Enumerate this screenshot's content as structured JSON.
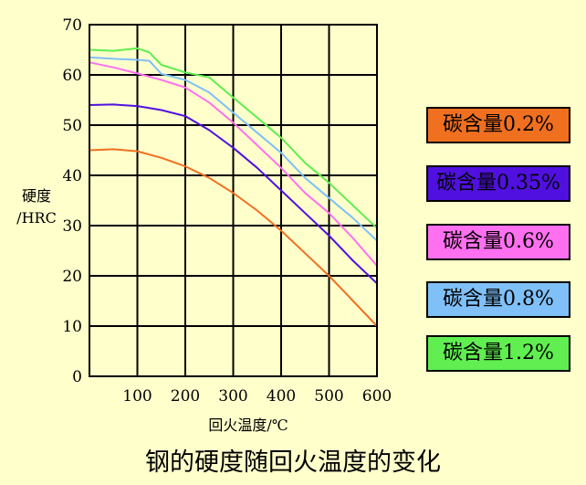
{
  "chart_data": {
    "type": "line",
    "title": "钢的硬度随回火温度的变化",
    "xlabel": "回火温度/℃",
    "ylabel": [
      "硬度",
      "/HRC"
    ],
    "xlim": [
      0,
      600
    ],
    "ylim": [
      0,
      70
    ],
    "x_ticks": [
      "100",
      "200",
      "300",
      "400",
      "500",
      "600"
    ],
    "y_ticks": [
      "0",
      "10",
      "20",
      "30",
      "40",
      "50",
      "60",
      "70"
    ],
    "grid": true,
    "legend_position": "right",
    "series": [
      {
        "name": "碳含量0.2%",
        "color": "#f07020",
        "points": [
          [
            0,
            45
          ],
          [
            50,
            45.2
          ],
          [
            100,
            44.8
          ],
          [
            150,
            43.5
          ],
          [
            200,
            41.8
          ],
          [
            250,
            39.5
          ],
          [
            300,
            36.5
          ],
          [
            350,
            33
          ],
          [
            400,
            29
          ],
          [
            450,
            24.5
          ],
          [
            500,
            20
          ],
          [
            550,
            15
          ],
          [
            600,
            10
          ]
        ]
      },
      {
        "name": "碳含量0.35%",
        "color": "#5010e0",
        "points": [
          [
            0,
            54
          ],
          [
            50,
            54.1
          ],
          [
            100,
            53.8
          ],
          [
            150,
            53
          ],
          [
            200,
            51.8
          ],
          [
            250,
            49
          ],
          [
            300,
            45.5
          ],
          [
            350,
            41.5
          ],
          [
            400,
            37
          ],
          [
            450,
            32.5
          ],
          [
            500,
            28
          ],
          [
            550,
            23
          ],
          [
            600,
            18.5
          ]
        ]
      },
      {
        "name": "碳含量0.6%",
        "color": "#ff70f0",
        "points": [
          [
            0,
            62.5
          ],
          [
            50,
            61.5
          ],
          [
            100,
            60.3
          ],
          [
            150,
            59
          ],
          [
            200,
            57.5
          ],
          [
            250,
            54.5
          ],
          [
            300,
            50.5
          ],
          [
            350,
            46
          ],
          [
            400,
            41.5
          ],
          [
            450,
            36.5
          ],
          [
            500,
            32.5
          ],
          [
            550,
            27.5
          ],
          [
            600,
            22
          ]
        ]
      },
      {
        "name": "碳含量0.8%",
        "color": "#80c0f8",
        "points": [
          [
            0,
            63.5
          ],
          [
            50,
            63.2
          ],
          [
            100,
            63
          ],
          [
            125,
            62.8
          ],
          [
            150,
            60.2
          ],
          [
            200,
            59
          ],
          [
            250,
            56.5
          ],
          [
            300,
            52.5
          ],
          [
            350,
            48.5
          ],
          [
            400,
            44.5
          ],
          [
            450,
            39.5
          ],
          [
            500,
            35.5
          ],
          [
            550,
            31.5
          ],
          [
            600,
            27
          ]
        ]
      },
      {
        "name": "碳含量1.2%",
        "color": "#60ee50",
        "points": [
          [
            0,
            65
          ],
          [
            50,
            64.8
          ],
          [
            100,
            65.3
          ],
          [
            125,
            64.5
          ],
          [
            150,
            62
          ],
          [
            200,
            60.5
          ],
          [
            250,
            59.5
          ],
          [
            300,
            55.5
          ],
          [
            350,
            51.5
          ],
          [
            400,
            47.5
          ],
          [
            450,
            42.5
          ],
          [
            500,
            38.5
          ],
          [
            550,
            34
          ],
          [
            600,
            29.5
          ]
        ]
      }
    ]
  }
}
